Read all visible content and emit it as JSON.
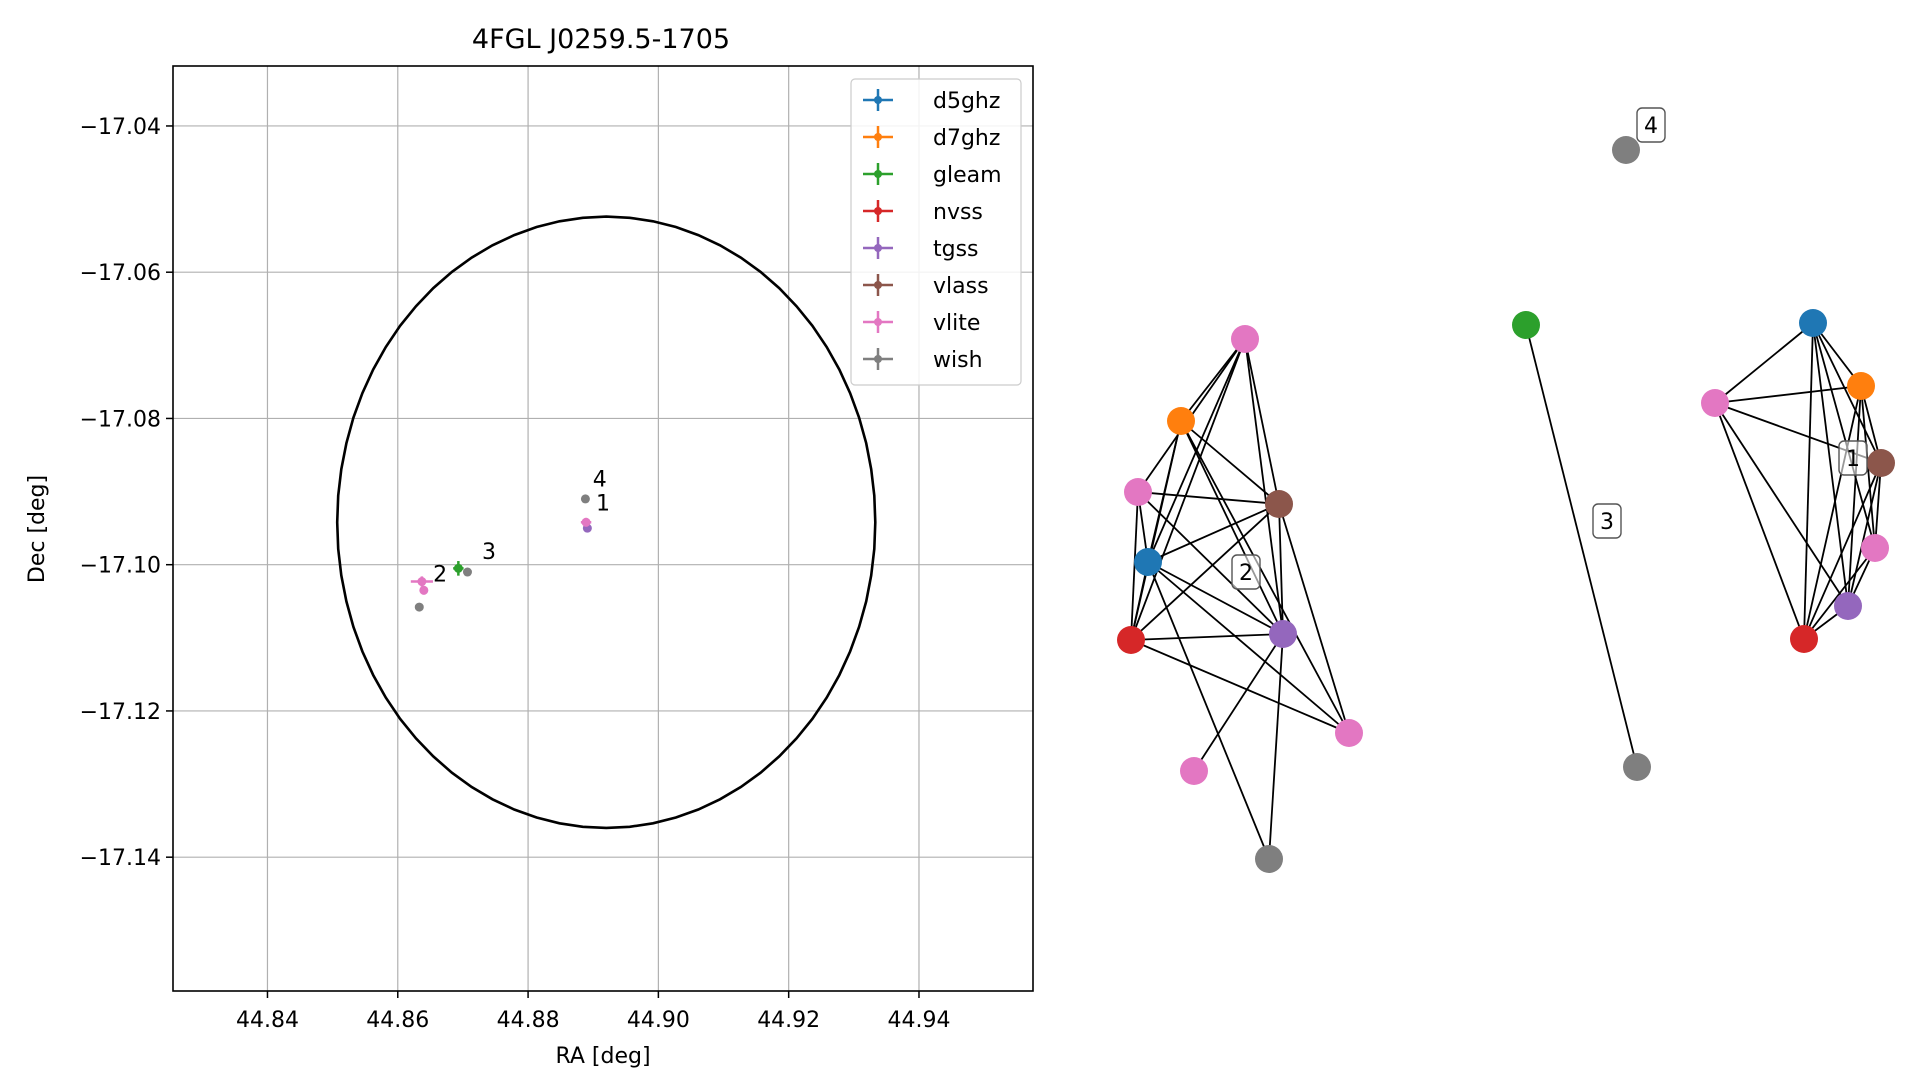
{
  "chart_data": [
    {
      "type": "scatter",
      "title": "4FGL J0259.5-1705",
      "xlabel": "RA [deg]",
      "ylabel": "Dec [deg]",
      "xlim": [
        44.8255,
        44.9575
      ],
      "ylim": [
        -17.1583,
        -17.0318
      ],
      "xticks": [
        44.84,
        44.86,
        44.88,
        44.9,
        44.92,
        44.94
      ],
      "xtick_labels": [
        "44.84",
        "44.86",
        "44.88",
        "44.90",
        "44.92",
        "44.94"
      ],
      "yticks": [
        -17.04,
        -17.06,
        -17.08,
        -17.1,
        -17.12,
        -17.14
      ],
      "ytick_labels": [
        "−17.04",
        "−17.06",
        "−17.08",
        "−17.10",
        "−17.12",
        "−17.14"
      ],
      "grid": true,
      "legend_position": "top-right",
      "ellipse": {
        "center": [
          44.892,
          -17.0942
        ],
        "ra_semi_axis": 0.0413,
        "dec_semi_axis": 0.0418,
        "color": "#000000"
      },
      "series": [
        {
          "name": "d5ghz",
          "color": "#1f77b4",
          "points": []
        },
        {
          "name": "d7ghz",
          "color": "#ff7f0e",
          "points": []
        },
        {
          "name": "gleam",
          "color": "#2ca02c",
          "points": [
            {
              "x": 44.8693,
              "y": -17.1005,
              "xerr": 0.0008,
              "yerr": 0.001
            }
          ]
        },
        {
          "name": "nvss",
          "color": "#d62728",
          "points": []
        },
        {
          "name": "tgss",
          "color": "#9467bd",
          "points": [
            {
              "x": 44.8891,
              "y": -17.095,
              "xerr": 0.0002,
              "yerr": 0.0002
            }
          ]
        },
        {
          "name": "vlass",
          "color": "#8c564b",
          "points": []
        },
        {
          "name": "vlite",
          "color": "#e377c2",
          "points": [
            {
              "x": 44.8889,
              "y": -17.0942,
              "xerr": 0.0008,
              "yerr": 0.0006
            },
            {
              "x": 44.8637,
              "y": -17.1023,
              "xerr": 0.0017,
              "yerr": 0.0007
            },
            {
              "x": 44.864,
              "y": -17.1035,
              "xerr": 0.0006,
              "yerr": 0.0006
            }
          ]
        },
        {
          "name": "wish",
          "color": "#7f7f7f",
          "points": [
            {
              "x": 44.8888,
              "y": -17.091,
              "xerr": 0.0001,
              "yerr": 0.0001
            },
            {
              "x": 44.8707,
              "y": -17.101,
              "xerr": 0.0001,
              "yerr": 0.0001
            },
            {
              "x": 44.8633,
              "y": -17.1058,
              "xerr": 0.0001,
              "yerr": 0.0001
            }
          ]
        }
      ],
      "annotations": [
        {
          "text": "4",
          "x": 44.889,
          "y": -17.0897
        },
        {
          "text": "1",
          "x": 44.8895,
          "y": -17.093
        },
        {
          "text": "3",
          "x": 44.872,
          "y": -17.0996
        },
        {
          "text": "2",
          "x": 44.8645,
          "y": -17.1027
        }
      ]
    },
    {
      "type": "network",
      "nodes": [
        {
          "id": "c2_vlite_a",
          "color": "#e377c2"
        },
        {
          "id": "c2_d7ghz",
          "color": "#ff7f0e"
        },
        {
          "id": "c2_vlite_b",
          "color": "#e377c2"
        },
        {
          "id": "c2_vlass",
          "color": "#8c564b"
        },
        {
          "id": "c2_d5ghz",
          "color": "#1f77b4"
        },
        {
          "id": "c2_nvss",
          "color": "#d62728"
        },
        {
          "id": "c2_tgss",
          "color": "#9467bd"
        },
        {
          "id": "c2_vlite_c",
          "color": "#e377c2"
        },
        {
          "id": "c2_vlite_d",
          "color": "#e377c2"
        },
        {
          "id": "c2_wish",
          "color": "#7f7f7f"
        },
        {
          "id": "c3_gleam",
          "color": "#2ca02c"
        },
        {
          "id": "c3_wish",
          "color": "#7f7f7f"
        },
        {
          "id": "c4_wish",
          "color": "#7f7f7f"
        },
        {
          "id": "c1_d5ghz",
          "color": "#1f77b4"
        },
        {
          "id": "c1_d7ghz",
          "color": "#ff7f0e"
        },
        {
          "id": "c1_vlite_a",
          "color": "#e377c2"
        },
        {
          "id": "c1_vlass",
          "color": "#8c564b"
        },
        {
          "id": "c1_vlite_b",
          "color": "#e377c2"
        },
        {
          "id": "c1_tgss",
          "color": "#9467bd"
        },
        {
          "id": "c1_nvss",
          "color": "#d62728"
        }
      ],
      "edges": [
        [
          "c2_vlite_a",
          "c2_d7ghz"
        ],
        [
          "c2_vlite_a",
          "c2_vlite_b"
        ],
        [
          "c2_vlite_a",
          "c2_d5ghz"
        ],
        [
          "c2_vlite_a",
          "c2_nvss"
        ],
        [
          "c2_vlite_a",
          "c2_vlass"
        ],
        [
          "c2_vlite_a",
          "c2_tgss"
        ],
        [
          "c2_d7ghz",
          "c2_vlass"
        ],
        [
          "c2_d7ghz",
          "c2_d5ghz"
        ],
        [
          "c2_d7ghz",
          "c2_nvss"
        ],
        [
          "c2_d7ghz",
          "c2_tgss"
        ],
        [
          "c2_d7ghz",
          "c2_vlite_c"
        ],
        [
          "c2_vlite_b",
          "c2_vlass"
        ],
        [
          "c2_vlite_b",
          "c2_d5ghz"
        ],
        [
          "c2_vlite_b",
          "c2_nvss"
        ],
        [
          "c2_vlite_b",
          "c2_tgss"
        ],
        [
          "c2_vlass",
          "c2_d5ghz"
        ],
        [
          "c2_vlass",
          "c2_nvss"
        ],
        [
          "c2_vlass",
          "c2_vlite_c"
        ],
        [
          "c2_vlass",
          "c2_tgss"
        ],
        [
          "c2_d5ghz",
          "c2_nvss"
        ],
        [
          "c2_d5ghz",
          "c2_tgss"
        ],
        [
          "c2_d5ghz",
          "c2_vlite_c"
        ],
        [
          "c2_d5ghz",
          "c2_wish"
        ],
        [
          "c2_nvss",
          "c2_tgss"
        ],
        [
          "c2_nvss",
          "c2_vlite_c"
        ],
        [
          "c2_tgss",
          "c2_vlite_d"
        ],
        [
          "c2_tgss",
          "c2_wish"
        ],
        [
          "c3_gleam",
          "c3_wish"
        ],
        [
          "c1_d5ghz",
          "c1_d7ghz"
        ],
        [
          "c1_d5ghz",
          "c1_vlite_a"
        ],
        [
          "c1_d5ghz",
          "c1_vlass"
        ],
        [
          "c1_d5ghz",
          "c1_vlite_b"
        ],
        [
          "c1_d5ghz",
          "c1_tgss"
        ],
        [
          "c1_d5ghz",
          "c1_nvss"
        ],
        [
          "c1_d7ghz",
          "c1_vlite_a"
        ],
        [
          "c1_d7ghz",
          "c1_vlass"
        ],
        [
          "c1_d7ghz",
          "c1_vlite_b"
        ],
        [
          "c1_d7ghz",
          "c1_tgss"
        ],
        [
          "c1_d7ghz",
          "c1_nvss"
        ],
        [
          "c1_vlite_a",
          "c1_vlass"
        ],
        [
          "c1_vlite_a",
          "c1_tgss"
        ],
        [
          "c1_vlite_a",
          "c1_nvss"
        ],
        [
          "c1_vlass",
          "c1_vlite_b"
        ],
        [
          "c1_vlass",
          "c1_tgss"
        ],
        [
          "c1_vlass",
          "c1_nvss"
        ],
        [
          "c1_vlite_b",
          "c1_tgss"
        ],
        [
          "c1_vlite_b",
          "c1_nvss"
        ],
        [
          "c1_tgss",
          "c1_nvss"
        ]
      ],
      "cluster_labels": [
        "1",
        "2",
        "3",
        "4"
      ]
    }
  ]
}
